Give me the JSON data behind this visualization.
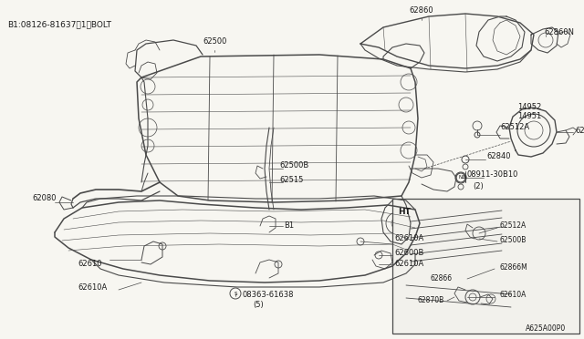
{
  "bg_color": "#f7f6f1",
  "line_color": "#4a4a4a",
  "text_color": "#1a1a1a",
  "title_note": "B1:08126-81637〈1〉BOLT",
  "title_note2": "B1:08126-81637<1>BOLT",
  "footer_note": "A625A00P0",
  "fig_w": 6.4,
  "fig_h": 3.72,
  "dpi": 100
}
